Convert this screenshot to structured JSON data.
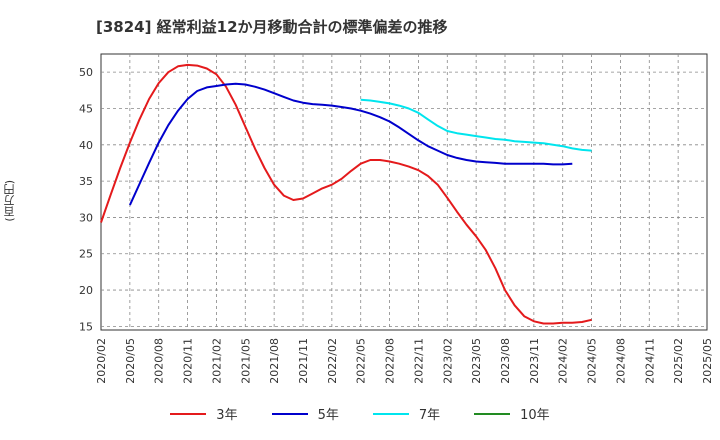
{
  "chart_data": {
    "type": "line",
    "title": "[3824]  経常利益12か月移動合計の標準偏差の推移",
    "ylabel": "(百万円)",
    "xlabel": "",
    "ylim": [
      14.5,
      52.5
    ],
    "yticks": [
      15,
      20,
      25,
      30,
      35,
      40,
      45,
      50
    ],
    "x_tick_labels": [
      "2020/02",
      "2020/05",
      "2020/08",
      "2020/11",
      "2021/02",
      "2021/05",
      "2021/08",
      "2021/11",
      "2022/02",
      "2022/05",
      "2022/08",
      "2022/11",
      "2023/02",
      "2023/05",
      "2023/08",
      "2023/11",
      "2024/02",
      "2024/05",
      "2024/08",
      "2024/11",
      "2025/02",
      "2025/05"
    ],
    "grid": true,
    "legend_position": "bottom",
    "series": [
      {
        "name": "3年",
        "color": "#e41a1c",
        "values": [
          29.3,
          33.1,
          36.8,
          40.3,
          43.5,
          46.3,
          48.5,
          50.0,
          50.8,
          51.0,
          50.9,
          50.5,
          49.7,
          48.0,
          45.5,
          42.5,
          39.5,
          36.8,
          34.5,
          33.0,
          32.4,
          32.6,
          33.3,
          34.0,
          34.5,
          35.3,
          36.4,
          37.4,
          37.9,
          37.9,
          37.7,
          37.4,
          37.0,
          36.5,
          35.7,
          34.5,
          32.7,
          30.8,
          29.0,
          27.4,
          25.5,
          23.0,
          20.0,
          17.9,
          16.4,
          15.7,
          15.4,
          15.4,
          15.5,
          15.5,
          15.6,
          15.9
        ],
        "start_index": 0
      },
      {
        "name": "5年",
        "color": "#0000cc",
        "values": [
          31.7,
          34.6,
          37.5,
          40.3,
          42.7,
          44.7,
          46.3,
          47.4,
          47.9,
          48.1,
          48.3,
          48.4,
          48.3,
          48.0,
          47.6,
          47.1,
          46.6,
          46.1,
          45.8,
          45.6,
          45.5,
          45.4,
          45.2,
          45.0,
          44.7,
          44.3,
          43.8,
          43.2,
          42.4,
          41.5,
          40.6,
          39.8,
          39.2,
          38.6,
          38.2,
          37.9,
          37.7,
          37.6,
          37.5,
          37.4,
          37.4,
          37.4,
          37.4,
          37.4,
          37.3,
          37.3,
          37.4
        ],
        "start_index": 3
      },
      {
        "name": "7年",
        "color": "#00e5ee",
        "values": [
          46.2,
          46.1,
          45.9,
          45.7,
          45.4,
          45.0,
          44.4,
          43.5,
          42.6,
          41.9,
          41.6,
          41.4,
          41.2,
          41.0,
          40.8,
          40.7,
          40.5,
          40.4,
          40.3,
          40.2,
          40.0,
          39.8,
          39.5,
          39.3,
          39.2
        ],
        "start_index": 27
      },
      {
        "name": "10年",
        "color": "#228b22",
        "values": [],
        "start_index": 0
      }
    ]
  }
}
